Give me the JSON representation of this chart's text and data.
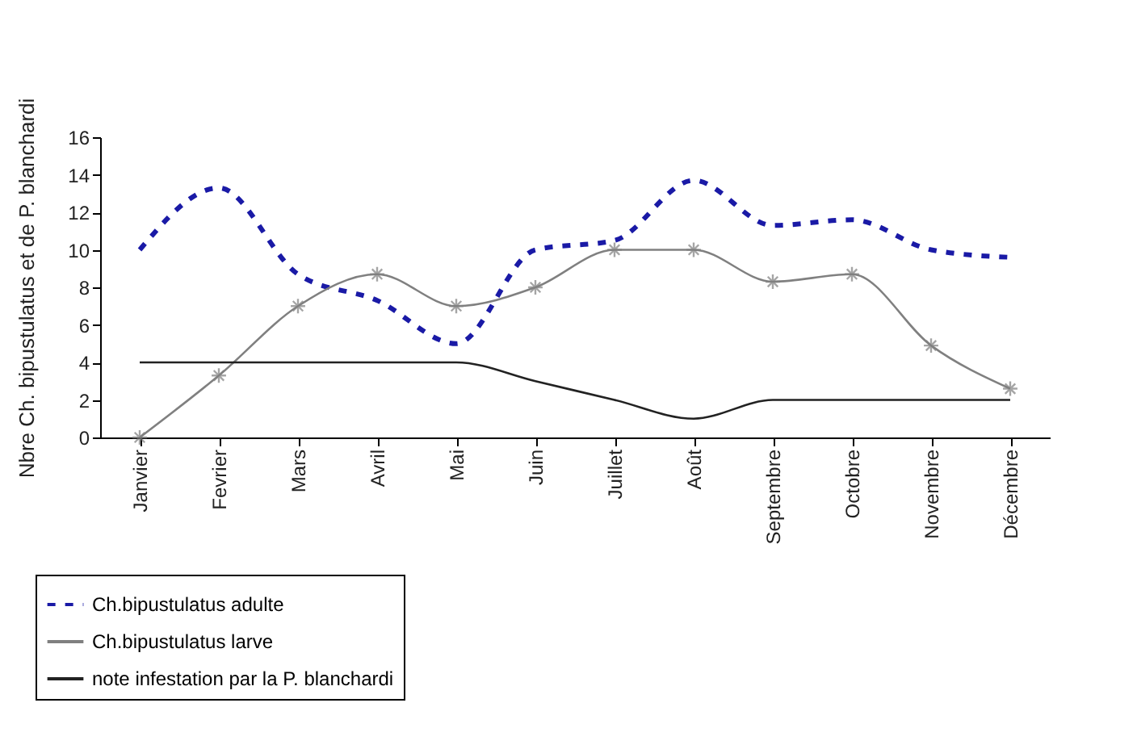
{
  "chart_data": {
    "type": "line",
    "ylabel": "Nbre Ch. bipustulatus et de P. blanchardi",
    "categories": [
      "Janvier",
      "Fevrier",
      "Mars",
      "Avril",
      "Mai",
      "Juin",
      "Juillet",
      "Août",
      "Septembre",
      "Octobre",
      "Novembre",
      "Décembre"
    ],
    "series": [
      {
        "name": "Ch.bipustulatus adulte",
        "color": "#1a1aa6",
        "line_style": "dashed",
        "marker": "none",
        "values": [
          10,
          13.3,
          8.7,
          7.3,
          5,
          10,
          10.5,
          13.7,
          11.3,
          11.6,
          10,
          9.6
        ]
      },
      {
        "name": "Ch.bipustulatus larve",
        "color": "#808080",
        "line_style": "solid",
        "marker": "cross",
        "values": [
          0,
          3.3,
          7,
          8.7,
          7,
          8,
          10,
          10,
          8.3,
          8.7,
          4.9,
          2.6
        ]
      },
      {
        "name": "note infestation par la P. blanchardi",
        "color": "#222222",
        "line_style": "solid",
        "marker": "none",
        "values": [
          4,
          4,
          4,
          4,
          4,
          3,
          2,
          1,
          2,
          2,
          2,
          2
        ]
      }
    ],
    "ylim": [
      0,
      16
    ],
    "yticks": [
      0,
      2,
      4,
      6,
      8,
      10,
      12,
      14,
      16
    ],
    "grid": false,
    "legend": "bottom left"
  }
}
